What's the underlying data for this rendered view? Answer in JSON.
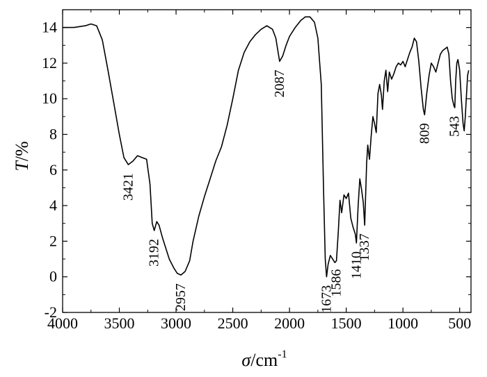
{
  "chart_data": {
    "type": "line",
    "title": "",
    "xlabel": {
      "symbol": "σ",
      "unit": "/cm",
      "exponent": "-1"
    },
    "ylabel": {
      "symbol": "T",
      "unit": "/%"
    },
    "xlim": [
      4000,
      400
    ],
    "ylim": [
      -2,
      15
    ],
    "x_reversed": true,
    "grid": false,
    "legend": "none",
    "x_ticks": [
      "4000",
      "3500",
      "3000",
      "2500",
      "2000",
      "1500",
      "1000",
      "500"
    ],
    "x_tick_values": [
      4000,
      3500,
      3000,
      2500,
      2000,
      1500,
      1000,
      500
    ],
    "y_ticks": [
      "-2",
      "0",
      "2",
      "4",
      "6",
      "8",
      "10",
      "12",
      "14"
    ],
    "y_tick_values": [
      -2,
      0,
      2,
      4,
      6,
      8,
      10,
      12,
      14
    ],
    "series": [
      {
        "color": "#000000",
        "points": [
          [
            4000,
            14.0
          ],
          [
            3900,
            14.0
          ],
          [
            3800,
            14.1
          ],
          [
            3750,
            14.2
          ],
          [
            3700,
            14.1
          ],
          [
            3650,
            13.3
          ],
          [
            3600,
            11.6
          ],
          [
            3550,
            9.8
          ],
          [
            3500,
            8.0
          ],
          [
            3460,
            6.7
          ],
          [
            3421,
            6.3
          ],
          [
            3380,
            6.5
          ],
          [
            3340,
            6.8
          ],
          [
            3300,
            6.7
          ],
          [
            3260,
            6.6
          ],
          [
            3230,
            5.2
          ],
          [
            3210,
            3.0
          ],
          [
            3192,
            2.6
          ],
          [
            3170,
            3.1
          ],
          [
            3150,
            2.9
          ],
          [
            3120,
            2.2
          ],
          [
            3090,
            1.6
          ],
          [
            3060,
            1.0
          ],
          [
            3020,
            0.5
          ],
          [
            2990,
            0.2
          ],
          [
            2957,
            0.1
          ],
          [
            2920,
            0.3
          ],
          [
            2880,
            0.9
          ],
          [
            2850,
            2.0
          ],
          [
            2800,
            3.4
          ],
          [
            2750,
            4.5
          ],
          [
            2700,
            5.5
          ],
          [
            2650,
            6.5
          ],
          [
            2600,
            7.3
          ],
          [
            2550,
            8.5
          ],
          [
            2500,
            10.0
          ],
          [
            2450,
            11.6
          ],
          [
            2400,
            12.6
          ],
          [
            2350,
            13.2
          ],
          [
            2300,
            13.6
          ],
          [
            2250,
            13.9
          ],
          [
            2200,
            14.1
          ],
          [
            2150,
            13.9
          ],
          [
            2120,
            13.4
          ],
          [
            2100,
            12.6
          ],
          [
            2087,
            12.1
          ],
          [
            2060,
            12.4
          ],
          [
            2030,
            13.0
          ],
          [
            2000,
            13.5
          ],
          [
            1950,
            14.0
          ],
          [
            1900,
            14.4
          ],
          [
            1860,
            14.6
          ],
          [
            1820,
            14.6
          ],
          [
            1780,
            14.3
          ],
          [
            1750,
            13.4
          ],
          [
            1720,
            10.8
          ],
          [
            1700,
            5.0
          ],
          [
            1685,
            1.0
          ],
          [
            1673,
            0.0
          ],
          [
            1660,
            0.7
          ],
          [
            1640,
            1.2
          ],
          [
            1620,
            1.0
          ],
          [
            1600,
            0.8
          ],
          [
            1586,
            0.9
          ],
          [
            1570,
            2.5
          ],
          [
            1555,
            4.3
          ],
          [
            1540,
            3.6
          ],
          [
            1520,
            4.6
          ],
          [
            1500,
            4.4
          ],
          [
            1480,
            4.7
          ],
          [
            1460,
            3.3
          ],
          [
            1440,
            2.8
          ],
          [
            1420,
            2.4
          ],
          [
            1410,
            1.9
          ],
          [
            1395,
            4.0
          ],
          [
            1380,
            5.5
          ],
          [
            1365,
            4.9
          ],
          [
            1350,
            4.2
          ],
          [
            1337,
            2.9
          ],
          [
            1320,
            6.4
          ],
          [
            1310,
            7.4
          ],
          [
            1295,
            6.6
          ],
          [
            1280,
            7.9
          ],
          [
            1265,
            9.0
          ],
          [
            1250,
            8.6
          ],
          [
            1235,
            8.1
          ],
          [
            1220,
            10.3
          ],
          [
            1205,
            10.8
          ],
          [
            1190,
            10.2
          ],
          [
            1180,
            9.4
          ],
          [
            1165,
            11.0
          ],
          [
            1150,
            11.6
          ],
          [
            1135,
            10.4
          ],
          [
            1120,
            11.5
          ],
          [
            1100,
            11.1
          ],
          [
            1080,
            11.4
          ],
          [
            1060,
            11.8
          ],
          [
            1040,
            12.0
          ],
          [
            1020,
            11.9
          ],
          [
            1000,
            12.1
          ],
          [
            980,
            11.8
          ],
          [
            960,
            12.2
          ],
          [
            940,
            12.6
          ],
          [
            920,
            12.9
          ],
          [
            900,
            13.4
          ],
          [
            880,
            13.2
          ],
          [
            860,
            12.1
          ],
          [
            840,
            10.6
          ],
          [
            820,
            9.4
          ],
          [
            809,
            9.1
          ],
          [
            790,
            10.3
          ],
          [
            770,
            11.3
          ],
          [
            750,
            12.0
          ],
          [
            730,
            11.8
          ],
          [
            710,
            11.5
          ],
          [
            690,
            12.0
          ],
          [
            670,
            12.5
          ],
          [
            650,
            12.7
          ],
          [
            630,
            12.8
          ],
          [
            610,
            12.9
          ],
          [
            595,
            12.5
          ],
          [
            580,
            11.0
          ],
          [
            565,
            10.0
          ],
          [
            550,
            9.6
          ],
          [
            543,
            9.5
          ],
          [
            535,
            11.0
          ],
          [
            525,
            12.0
          ],
          [
            515,
            12.2
          ],
          [
            500,
            11.6
          ],
          [
            485,
            10.0
          ],
          [
            470,
            8.6
          ],
          [
            460,
            8.2
          ],
          [
            450,
            9.0
          ],
          [
            440,
            10.2
          ],
          [
            430,
            11.3
          ],
          [
            420,
            11.6
          ]
        ]
      }
    ],
    "peak_labels": [
      {
        "text": "3421",
        "x": 3421,
        "y": 6.3
      },
      {
        "text": "3192",
        "x": 3192,
        "y": 2.6
      },
      {
        "text": "2957",
        "x": 2957,
        "y": 0.1
      },
      {
        "text": "2087",
        "x": 2087,
        "y": 12.1
      },
      {
        "text": "1673",
        "x": 1673,
        "y": 0.0
      },
      {
        "text": "1586",
        "x": 1586,
        "y": 0.9
      },
      {
        "text": "1410",
        "x": 1410,
        "y": 1.9
      },
      {
        "text": "1337",
        "x": 1337,
        "y": 2.9
      },
      {
        "text": "809",
        "x": 809,
        "y": 9.1
      },
      {
        "text": "543",
        "x": 543,
        "y": 9.5
      }
    ]
  }
}
